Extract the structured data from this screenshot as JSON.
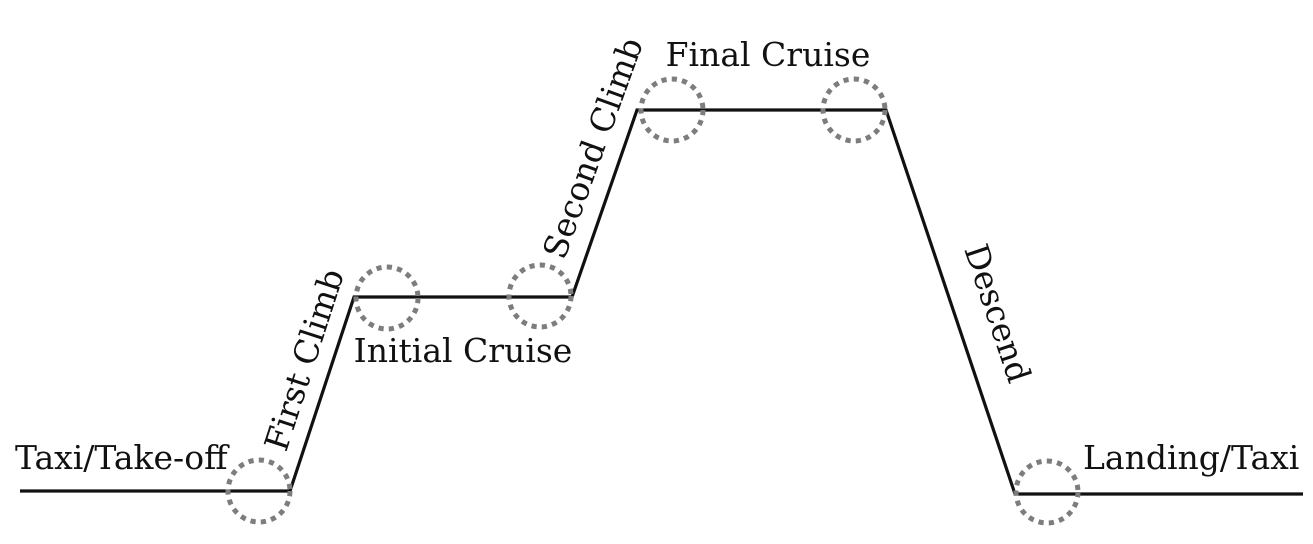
{
  "diagram": {
    "phases": [
      {
        "id": "taxi-takeoff",
        "label": "Taxi/Take-off"
      },
      {
        "id": "first-climb",
        "label": "First Climb"
      },
      {
        "id": "initial-cruise",
        "label": "Initial Cruise"
      },
      {
        "id": "second-climb",
        "label": "Second Climb"
      },
      {
        "id": "final-cruise",
        "label": "Final Cruise"
      },
      {
        "id": "descend",
        "label": "Descend"
      },
      {
        "id": "landing-taxi",
        "label": "Landing/Taxi"
      }
    ],
    "colors": {
      "line": "#111111",
      "transition_marker": "#7d7d7d",
      "background": "#ffffff"
    }
  }
}
